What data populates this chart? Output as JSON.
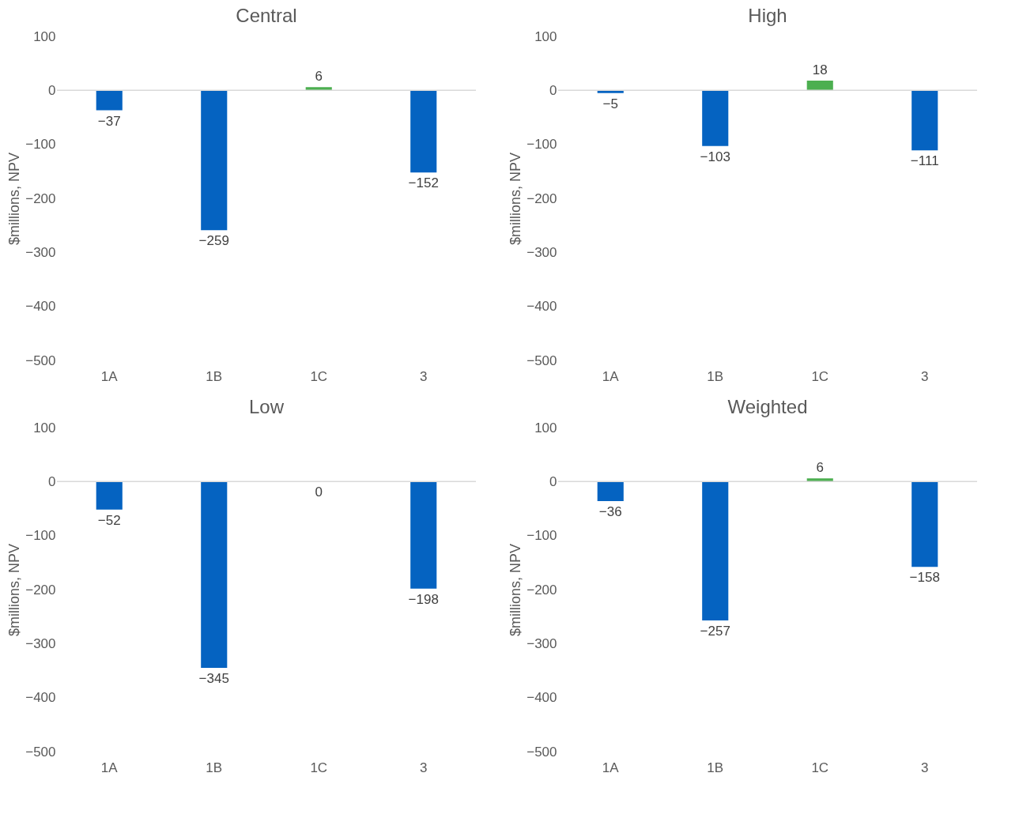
{
  "chart_data": [
    {
      "type": "bar",
      "title": "Central",
      "ylabel": "$millions, NPV",
      "categories": [
        "1A",
        "1B",
        "1C",
        "3"
      ],
      "values": [
        -37,
        -259,
        6,
        -152
      ],
      "colors": [
        "#0563c1",
        "#0563c1",
        "#4caf50",
        "#0563c1"
      ],
      "ylim": [
        -500,
        100
      ],
      "yticks": [
        -500,
        -400,
        -300,
        -200,
        -100,
        0,
        100
      ],
      "data_labels": true,
      "ref_lines": [
        {
          "axis": "y",
          "value": 0,
          "color": "#d9d9d9"
        }
      ]
    },
    {
      "type": "bar",
      "title": "High",
      "ylabel": "$millions, NPV",
      "categories": [
        "1A",
        "1B",
        "1C",
        "3"
      ],
      "values": [
        -5,
        -103,
        18,
        -111
      ],
      "colors": [
        "#0563c1",
        "#0563c1",
        "#4caf50",
        "#0563c1"
      ],
      "ylim": [
        -500,
        100
      ],
      "yticks": [
        -500,
        -400,
        -300,
        -200,
        -100,
        0,
        100
      ],
      "data_labels": true,
      "ref_lines": [
        {
          "axis": "y",
          "value": 0,
          "color": "#d9d9d9"
        }
      ]
    },
    {
      "type": "bar",
      "title": "Low",
      "ylabel": "$millions, NPV",
      "categories": [
        "1A",
        "1B",
        "1C",
        "3"
      ],
      "values": [
        -52,
        -345,
        0,
        -198
      ],
      "colors": [
        "#0563c1",
        "#0563c1",
        "#4caf50",
        "#0563c1"
      ],
      "ylim": [
        -500,
        100
      ],
      "yticks": [
        -500,
        -400,
        -300,
        -200,
        -100,
        0,
        100
      ],
      "data_labels": true,
      "ref_lines": [
        {
          "axis": "y",
          "value": 0,
          "color": "#d9d9d9"
        }
      ]
    },
    {
      "type": "bar",
      "title": "Weighted",
      "ylabel": "$millions, NPV",
      "categories": [
        "1A",
        "1B",
        "1C",
        "3"
      ],
      "values": [
        -36,
        -257,
        6,
        -158
      ],
      "colors": [
        "#0563c1",
        "#0563c1",
        "#4caf50",
        "#0563c1"
      ],
      "ylim": [
        -500,
        100
      ],
      "yticks": [
        -500,
        -400,
        -300,
        -200,
        -100,
        0,
        100
      ],
      "data_labels": true,
      "ref_lines": [
        {
          "axis": "y",
          "value": 0,
          "color": "#d9d9d9"
        }
      ]
    }
  ]
}
